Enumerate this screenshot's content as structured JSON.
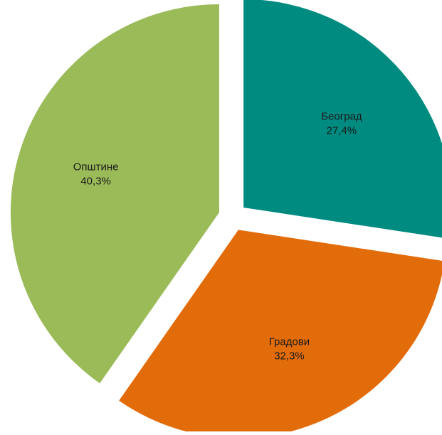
{
  "chart_data": {
    "type": "pie",
    "title": "",
    "slices": [
      {
        "label": "Београд",
        "value": 27.4,
        "value_label": "27,4%",
        "color": "#008B80"
      },
      {
        "label": "Градови",
        "value": 32.3,
        "value_label": "32,3%",
        "color": "#E36C0A"
      },
      {
        "label": "Општине",
        "value": 40.3,
        "value_label": "40,3%",
        "color": "#9BBB59"
      }
    ],
    "start_angle_deg": 0,
    "direction": "clockwise",
    "exploded": true,
    "legend": "none",
    "data_labels": "inside"
  }
}
